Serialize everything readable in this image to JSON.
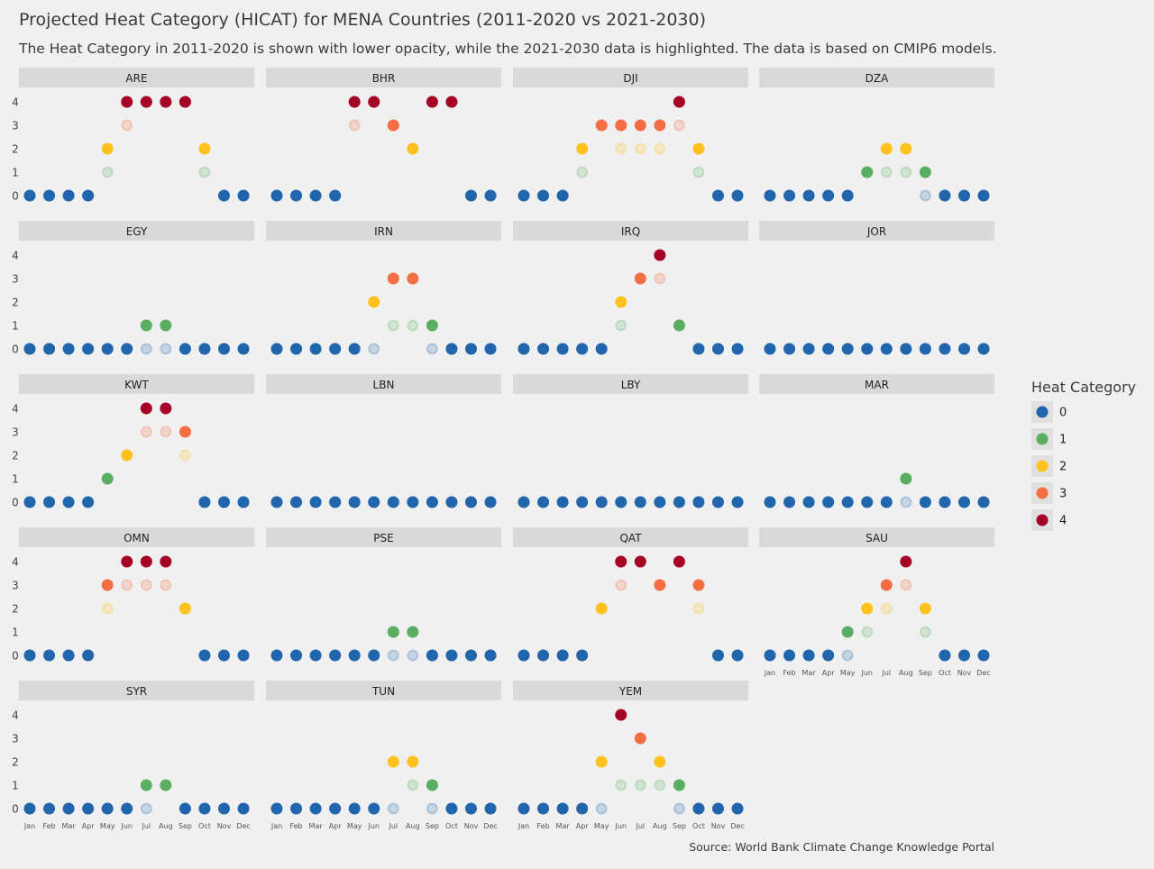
{
  "title": "Projected Heat Category (HICAT) for MENA Countries (2011-2020 vs 2021-2030)",
  "subtitle": "The Heat Category in 2011-2020 is shown with lower opacity, while the 2021-2030 data is highlighted. The data is based on CMIP6 models.",
  "source": "Source: World Bank Climate Change Knowledge Portal",
  "chart_data": {
    "type": "scatter",
    "facet_by": "country",
    "x_categories": [
      "Jan",
      "Feb",
      "Mar",
      "Apr",
      "May",
      "Jun",
      "Jul",
      "Aug",
      "Sep",
      "Oct",
      "Nov",
      "Dec"
    ],
    "y_ticks": [
      0,
      1,
      2,
      3,
      4
    ],
    "ylim": [
      0,
      4
    ],
    "grid": false,
    "legend": {
      "title": "Heat Category",
      "placement": "right",
      "entries": [
        "0",
        "1",
        "2",
        "3",
        "4"
      ]
    },
    "category_colors": [
      "#2166ac",
      "#5aae61",
      "#fec11e",
      "#f46d43",
      "#a50026"
    ],
    "periods": [
      "2011-2020",
      "2021-2030"
    ],
    "panels": [
      {
        "country": "ARE",
        "2011-2020": [
          0,
          0,
          0,
          0,
          1,
          3,
          4,
          4,
          4,
          1,
          0,
          0
        ],
        "2021-2030": [
          0,
          0,
          0,
          0,
          2,
          4,
          4,
          4,
          4,
          2,
          0,
          0
        ]
      },
      {
        "country": "BHR",
        "2011-2020": [
          0,
          0,
          0,
          0,
          3,
          4,
          3,
          2,
          4,
          4,
          0,
          0
        ],
        "2021-2030": [
          0,
          0,
          0,
          0,
          4,
          4,
          3,
          2,
          4,
          4,
          0,
          0
        ]
      },
      {
        "country": "DJI",
        "2011-2020": [
          0,
          0,
          0,
          1,
          3,
          2,
          2,
          2,
          3,
          1,
          0,
          0
        ],
        "2021-2030": [
          0,
          0,
          0,
          2,
          3,
          3,
          3,
          3,
          4,
          2,
          0,
          0
        ]
      },
      {
        "country": "DZA",
        "2011-2020": [
          0,
          0,
          0,
          0,
          0,
          1,
          1,
          1,
          0,
          0,
          0,
          0
        ],
        "2021-2030": [
          0,
          0,
          0,
          0,
          0,
          1,
          2,
          2,
          1,
          0,
          0,
          0
        ]
      },
      {
        "country": "EGY",
        "2011-2020": [
          0,
          0,
          0,
          0,
          0,
          0,
          0,
          0,
          0,
          0,
          0,
          0
        ],
        "2021-2030": [
          0,
          0,
          0,
          0,
          0,
          0,
          1,
          1,
          0,
          0,
          0,
          0
        ]
      },
      {
        "country": "IRN",
        "2011-2020": [
          0,
          0,
          0,
          0,
          0,
          0,
          1,
          1,
          0,
          0,
          0,
          0
        ],
        "2021-2030": [
          0,
          0,
          0,
          0,
          0,
          2,
          3,
          3,
          1,
          0,
          0,
          0
        ]
      },
      {
        "country": "IRQ",
        "2011-2020": [
          0,
          0,
          0,
          0,
          0,
          1,
          3,
          3,
          1,
          0,
          0,
          0
        ],
        "2021-2030": [
          0,
          0,
          0,
          0,
          0,
          2,
          3,
          4,
          1,
          0,
          0,
          0
        ]
      },
      {
        "country": "JOR",
        "2011-2020": [
          0,
          0,
          0,
          0,
          0,
          0,
          0,
          0,
          0,
          0,
          0,
          0
        ],
        "2021-2030": [
          0,
          0,
          0,
          0,
          0,
          0,
          0,
          0,
          0,
          0,
          0,
          0
        ]
      },
      {
        "country": "KWT",
        "2011-2020": [
          0,
          0,
          0,
          0,
          1,
          2,
          3,
          3,
          2,
          0,
          0,
          0
        ],
        "2021-2030": [
          0,
          0,
          0,
          0,
          1,
          2,
          4,
          4,
          3,
          0,
          0,
          0
        ]
      },
      {
        "country": "LBN",
        "2011-2020": [
          0,
          0,
          0,
          0,
          0,
          0,
          0,
          0,
          0,
          0,
          0,
          0
        ],
        "2021-2030": [
          0,
          0,
          0,
          0,
          0,
          0,
          0,
          0,
          0,
          0,
          0,
          0
        ]
      },
      {
        "country": "LBY",
        "2011-2020": [
          0,
          0,
          0,
          0,
          0,
          0,
          0,
          0,
          0,
          0,
          0,
          0
        ],
        "2021-2030": [
          0,
          0,
          0,
          0,
          0,
          0,
          0,
          0,
          0,
          0,
          0,
          0
        ]
      },
      {
        "country": "MAR",
        "2011-2020": [
          0,
          0,
          0,
          0,
          0,
          0,
          0,
          0,
          0,
          0,
          0,
          0
        ],
        "2021-2030": [
          0,
          0,
          0,
          0,
          0,
          0,
          0,
          1,
          0,
          0,
          0,
          0
        ]
      },
      {
        "country": "OMN",
        "2011-2020": [
          0,
          0,
          0,
          0,
          2,
          3,
          3,
          3,
          2,
          0,
          0,
          0
        ],
        "2021-2030": [
          0,
          0,
          0,
          0,
          3,
          4,
          4,
          4,
          2,
          0,
          0,
          0
        ]
      },
      {
        "country": "PSE",
        "2011-2020": [
          0,
          0,
          0,
          0,
          0,
          0,
          0,
          0,
          0,
          0,
          0,
          0
        ],
        "2021-2030": [
          0,
          0,
          0,
          0,
          0,
          0,
          1,
          1,
          0,
          0,
          0,
          0
        ]
      },
      {
        "country": "QAT",
        "2011-2020": [
          0,
          0,
          0,
          0,
          2,
          3,
          4,
          3,
          4,
          2,
          0,
          0
        ],
        "2021-2030": [
          0,
          0,
          0,
          0,
          2,
          4,
          4,
          3,
          4,
          3,
          0,
          0
        ]
      },
      {
        "country": "SAU",
        "2011-2020": [
          0,
          0,
          0,
          0,
          0,
          1,
          2,
          3,
          1,
          0,
          0,
          0
        ],
        "2021-2030": [
          0,
          0,
          0,
          0,
          1,
          2,
          3,
          4,
          2,
          0,
          0,
          0
        ]
      },
      {
        "country": "SYR",
        "2011-2020": [
          0,
          0,
          0,
          0,
          0,
          0,
          0,
          1,
          0,
          0,
          0,
          0
        ],
        "2021-2030": [
          0,
          0,
          0,
          0,
          0,
          0,
          1,
          1,
          0,
          0,
          0,
          0
        ]
      },
      {
        "country": "TUN",
        "2011-2020": [
          0,
          0,
          0,
          0,
          0,
          0,
          0,
          1,
          0,
          0,
          0,
          0
        ],
        "2021-2030": [
          0,
          0,
          0,
          0,
          0,
          0,
          2,
          2,
          1,
          0,
          0,
          0
        ]
      },
      {
        "country": "YEM",
        "2011-2020": [
          0,
          0,
          0,
          0,
          0,
          1,
          1,
          1,
          0,
          0,
          0,
          0
        ],
        "2021-2030": [
          0,
          0,
          0,
          0,
          2,
          4,
          3,
          2,
          1,
          0,
          0,
          0
        ]
      }
    ]
  }
}
